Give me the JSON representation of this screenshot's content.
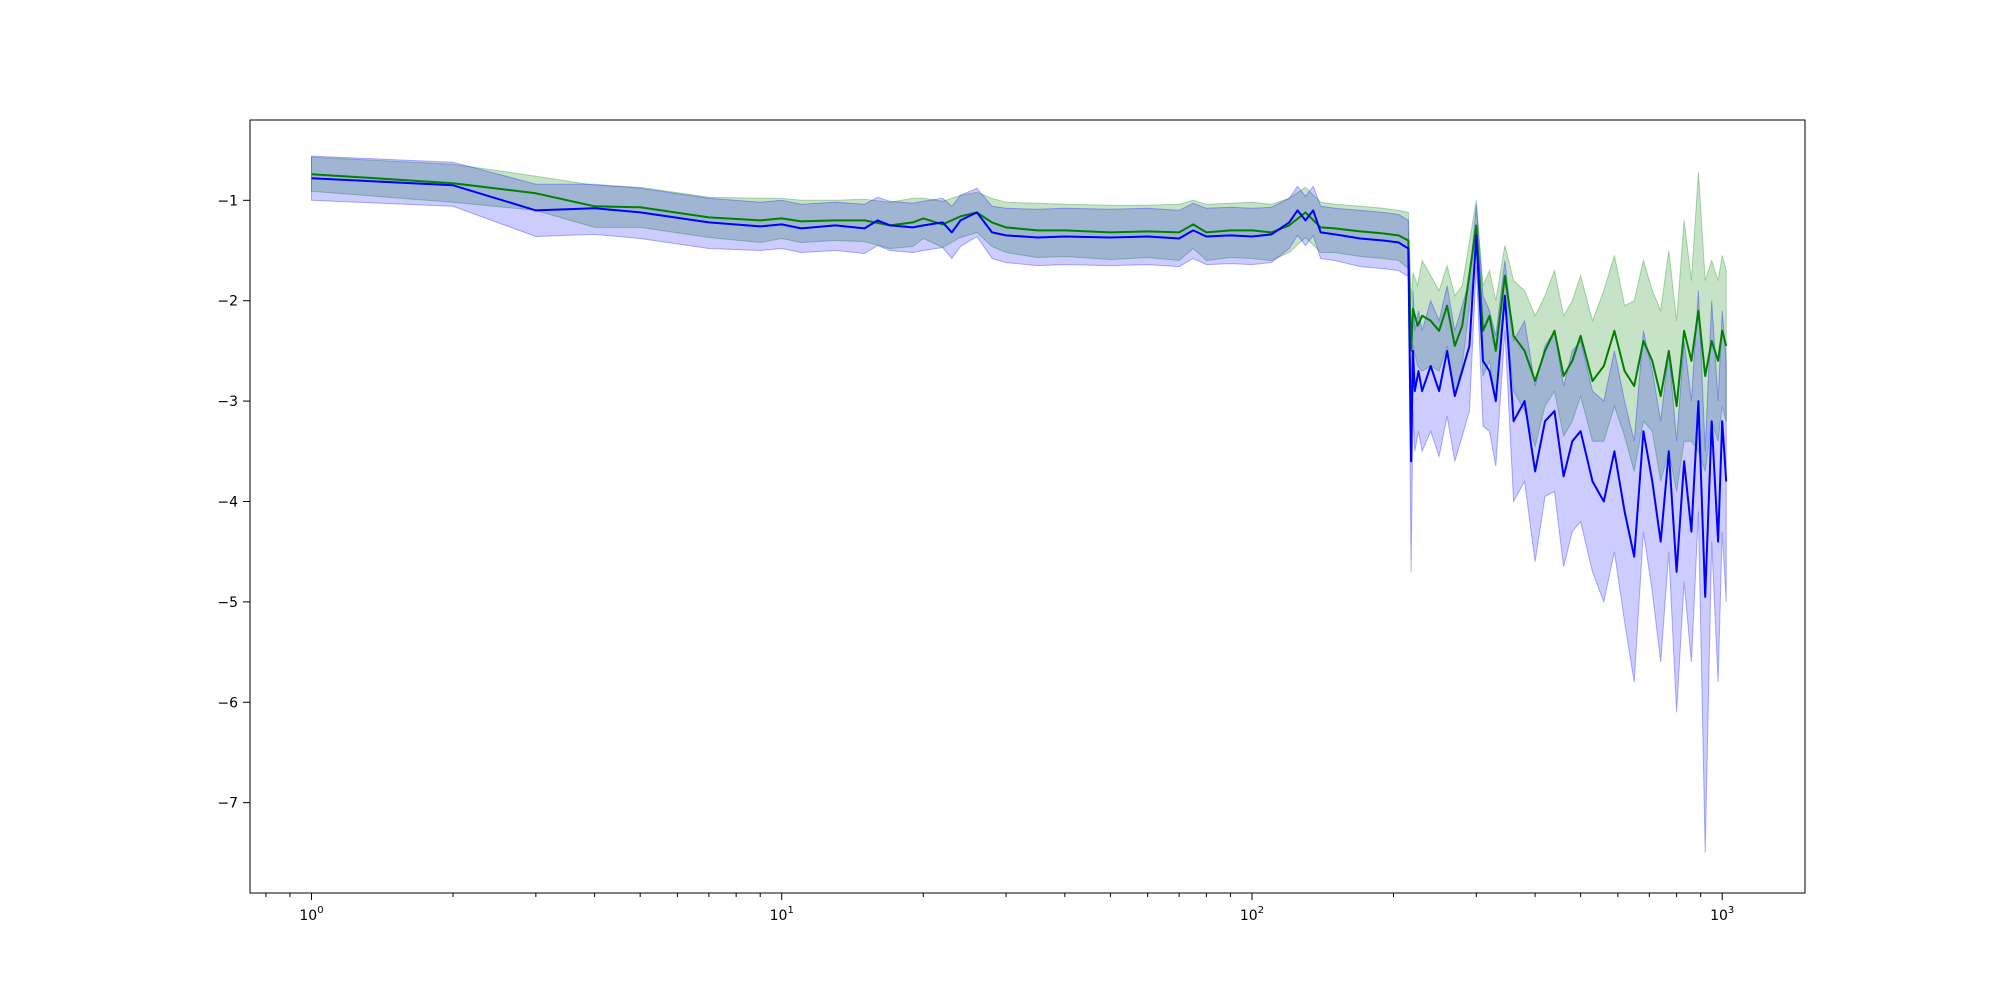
{
  "chart_data": {
    "type": "line",
    "title": "",
    "xlabel": "",
    "ylabel": "",
    "x_scale": "log",
    "xlim": [
      0.74,
      1500
    ],
    "ylim": [
      -7.9,
      -0.2
    ],
    "grid": false,
    "legend": "none",
    "x_ticks": [
      {
        "value": 1,
        "base": "10",
        "exp": "0"
      },
      {
        "value": 10,
        "base": "10",
        "exp": "1"
      },
      {
        "value": 100,
        "base": "10",
        "exp": "2"
      },
      {
        "value": 1000,
        "base": "10",
        "exp": "3"
      }
    ],
    "y_ticks": [
      {
        "value": -1,
        "label": "−1"
      },
      {
        "value": -2,
        "label": "−2"
      },
      {
        "value": -3,
        "label": "−3"
      },
      {
        "value": -4,
        "label": "−4"
      },
      {
        "value": -5,
        "label": "−5"
      },
      {
        "value": -6,
        "label": "−6"
      },
      {
        "value": -7,
        "label": "−7"
      }
    ],
    "series": [
      {
        "color": "#008000",
        "band_color": "#008000",
        "band_opacity": 0.22,
        "x": [
          1,
          2,
          3,
          4,
          5,
          7,
          9,
          10,
          11,
          13,
          15,
          17,
          19,
          20,
          22,
          24,
          26,
          28,
          30,
          35,
          40,
          50,
          60,
          70,
          75,
          80,
          90,
          100,
          110,
          120,
          130,
          140,
          150,
          170,
          190,
          205,
          215,
          218,
          220,
          225,
          230,
          240,
          250,
          260,
          270,
          280,
          300,
          310,
          320,
          330,
          345,
          360,
          380,
          400,
          420,
          440,
          460,
          480,
          500,
          530,
          560,
          590,
          620,
          650,
          680,
          710,
          740,
          770,
          800,
          830,
          860,
          890,
          920,
          950,
          980,
          1000,
          1020
        ],
        "y": [
          -0.74,
          -0.83,
          -0.93,
          -1.06,
          -1.07,
          -1.17,
          -1.2,
          -1.18,
          -1.21,
          -1.2,
          -1.2,
          -1.25,
          -1.22,
          -1.18,
          -1.24,
          -1.16,
          -1.12,
          -1.22,
          -1.27,
          -1.3,
          -1.3,
          -1.32,
          -1.31,
          -1.32,
          -1.24,
          -1.32,
          -1.3,
          -1.3,
          -1.32,
          -1.25,
          -1.12,
          -1.27,
          -1.28,
          -1.31,
          -1.33,
          -1.35,
          -1.4,
          -2.5,
          -2.08,
          -2.25,
          -2.15,
          -2.2,
          -2.3,
          -2.05,
          -2.45,
          -2.25,
          -1.25,
          -2.3,
          -2.15,
          -2.5,
          -1.75,
          -2.35,
          -2.5,
          -2.8,
          -2.5,
          -2.3,
          -2.75,
          -2.6,
          -2.35,
          -2.8,
          -2.65,
          -2.3,
          -2.7,
          -2.85,
          -2.4,
          -2.6,
          -2.95,
          -2.5,
          -3.05,
          -2.3,
          -2.6,
          -2.1,
          -2.75,
          -2.4,
          -2.6,
          -2.3,
          -2.45
        ],
        "upper": [
          -0.57,
          -0.64,
          -0.76,
          -0.85,
          -0.87,
          -0.97,
          -0.98,
          -0.98,
          -1.0,
          -1.0,
          -0.99,
          -1.02,
          -0.98,
          -0.98,
          -1.01,
          -0.95,
          -0.92,
          -0.98,
          -1.02,
          -1.03,
          -1.04,
          -1.05,
          -1.05,
          -1.04,
          -1.0,
          -1.04,
          -1.03,
          -1.02,
          -1.04,
          -0.98,
          -0.87,
          -1.02,
          -1.04,
          -1.06,
          -1.08,
          -1.1,
          -1.12,
          -2.0,
          -1.72,
          -1.85,
          -1.6,
          -1.75,
          -1.9,
          -1.65,
          -1.95,
          -1.85,
          -1.0,
          -1.85,
          -1.7,
          -2.0,
          -1.45,
          -1.8,
          -1.9,
          -2.15,
          -1.95,
          -1.7,
          -2.15,
          -2.0,
          -1.75,
          -2.2,
          -1.9,
          -1.55,
          -2.05,
          -2.0,
          -1.6,
          -1.9,
          -2.1,
          -1.5,
          -2.2,
          -1.2,
          -1.8,
          -0.72,
          -1.8,
          -1.6,
          -1.8,
          -1.55,
          -1.7
        ],
        "lower": [
          -0.91,
          -1.02,
          -1.1,
          -1.27,
          -1.27,
          -1.37,
          -1.42,
          -1.38,
          -1.42,
          -1.4,
          -1.41,
          -1.48,
          -1.46,
          -1.38,
          -1.47,
          -1.37,
          -1.32,
          -1.46,
          -1.52,
          -1.57,
          -1.56,
          -1.59,
          -1.57,
          -1.6,
          -1.48,
          -1.6,
          -1.57,
          -1.58,
          -1.6,
          -1.52,
          -1.37,
          -1.52,
          -1.52,
          -1.56,
          -1.58,
          -1.6,
          -1.68,
          -3.0,
          -2.44,
          -2.65,
          -2.7,
          -2.65,
          -2.7,
          -2.45,
          -2.95,
          -2.65,
          -1.5,
          -2.75,
          -2.6,
          -3.0,
          -2.05,
          -2.9,
          -3.1,
          -3.45,
          -3.05,
          -2.9,
          -3.35,
          -3.2,
          -2.95,
          -3.4,
          -3.4,
          -3.05,
          -3.35,
          -3.7,
          -3.2,
          -3.3,
          -3.8,
          -3.5,
          -3.9,
          -3.4,
          -3.4,
          -3.5,
          -3.7,
          -3.2,
          -3.4,
          -3.05,
          -3.2
        ]
      },
      {
        "color": "#0000ff",
        "band_color": "#0000ff",
        "band_opacity": 0.2,
        "x": [
          1,
          2,
          3,
          4,
          5,
          7,
          9,
          10,
          11,
          13,
          15,
          16,
          17,
          19,
          20,
          22,
          23,
          24,
          26,
          28,
          30,
          35,
          40,
          50,
          60,
          70,
          75,
          80,
          90,
          100,
          110,
          120,
          125,
          130,
          135,
          140,
          150,
          170,
          190,
          205,
          215,
          218,
          220,
          222,
          226,
          230,
          240,
          250,
          260,
          270,
          280,
          290,
          300,
          310,
          320,
          330,
          345,
          360,
          380,
          400,
          420,
          440,
          460,
          480,
          500,
          530,
          560,
          590,
          620,
          650,
          680,
          710,
          740,
          770,
          800,
          830,
          860,
          890,
          920,
          950,
          980,
          1000,
          1020
        ],
        "y": [
          -0.78,
          -0.85,
          -1.1,
          -1.08,
          -1.12,
          -1.22,
          -1.26,
          -1.24,
          -1.28,
          -1.25,
          -1.28,
          -1.2,
          -1.25,
          -1.27,
          -1.25,
          -1.22,
          -1.32,
          -1.2,
          -1.12,
          -1.32,
          -1.35,
          -1.37,
          -1.36,
          -1.37,
          -1.36,
          -1.38,
          -1.3,
          -1.36,
          -1.35,
          -1.36,
          -1.34,
          -1.22,
          -1.1,
          -1.2,
          -1.1,
          -1.32,
          -1.34,
          -1.38,
          -1.4,
          -1.42,
          -1.48,
          -3.6,
          -2.5,
          -2.9,
          -2.7,
          -2.9,
          -2.65,
          -2.9,
          -2.5,
          -2.95,
          -2.7,
          -2.45,
          -1.35,
          -2.6,
          -2.7,
          -3.0,
          -1.95,
          -3.2,
          -3.0,
          -3.7,
          -3.2,
          -3.1,
          -3.75,
          -3.4,
          -3.3,
          -3.8,
          -4.0,
          -3.5,
          -4.1,
          -4.55,
          -3.3,
          -3.8,
          -4.4,
          -3.5,
          -4.7,
          -3.6,
          -4.3,
          -3.0,
          -4.95,
          -3.2,
          -4.4,
          -3.2,
          -3.8
        ],
        "upper": [
          -0.56,
          -0.62,
          -0.84,
          -0.84,
          -0.88,
          -0.98,
          -1.02,
          -1.0,
          -1.04,
          -1.02,
          -1.04,
          -0.97,
          -1.01,
          -1.03,
          -1.01,
          -0.98,
          -1.06,
          -0.95,
          -0.88,
          -1.06,
          -1.08,
          -1.09,
          -1.08,
          -1.09,
          -1.08,
          -1.1,
          -1.03,
          -1.08,
          -1.07,
          -1.08,
          -1.07,
          -0.98,
          -0.86,
          -0.96,
          -0.86,
          -1.06,
          -1.08,
          -1.1,
          -1.12,
          -1.14,
          -1.2,
          -3.0,
          -1.9,
          -2.3,
          -2.1,
          -2.3,
          -2.0,
          -2.2,
          -1.85,
          -2.3,
          -2.05,
          -1.8,
          -1.05,
          -1.95,
          -2.1,
          -2.35,
          -1.6,
          -2.4,
          -2.2,
          -2.85,
          -2.45,
          -2.3,
          -2.85,
          -2.5,
          -2.4,
          -2.9,
          -3.0,
          -2.5,
          -3.0,
          -3.4,
          -2.3,
          -2.7,
          -3.2,
          -2.5,
          -3.4,
          -2.4,
          -3.0,
          -1.9,
          -3.5,
          -2.0,
          -3.0,
          -2.1,
          -2.6
        ],
        "lower": [
          -1.0,
          -1.06,
          -1.36,
          -1.34,
          -1.38,
          -1.48,
          -1.5,
          -1.48,
          -1.52,
          -1.5,
          -1.53,
          -1.45,
          -1.5,
          -1.52,
          -1.5,
          -1.47,
          -1.58,
          -1.46,
          -1.36,
          -1.58,
          -1.62,
          -1.65,
          -1.64,
          -1.65,
          -1.64,
          -1.66,
          -1.58,
          -1.64,
          -1.63,
          -1.64,
          -1.62,
          -1.48,
          -1.35,
          -1.45,
          -1.35,
          -1.58,
          -1.6,
          -1.66,
          -1.68,
          -1.7,
          -1.76,
          -4.7,
          -3.1,
          -3.5,
          -3.3,
          -3.5,
          -3.3,
          -3.55,
          -3.15,
          -3.6,
          -3.35,
          -3.1,
          -1.65,
          -3.25,
          -3.3,
          -3.65,
          -2.3,
          -4.0,
          -3.8,
          -4.6,
          -3.95,
          -3.9,
          -4.65,
          -4.3,
          -4.2,
          -4.7,
          -5.0,
          -4.5,
          -5.2,
          -5.8,
          -4.3,
          -4.9,
          -5.6,
          -4.5,
          -6.1,
          -4.8,
          -5.6,
          -4.1,
          -7.5,
          -4.4,
          -5.8,
          -4.3,
          -5.0
        ]
      }
    ]
  }
}
